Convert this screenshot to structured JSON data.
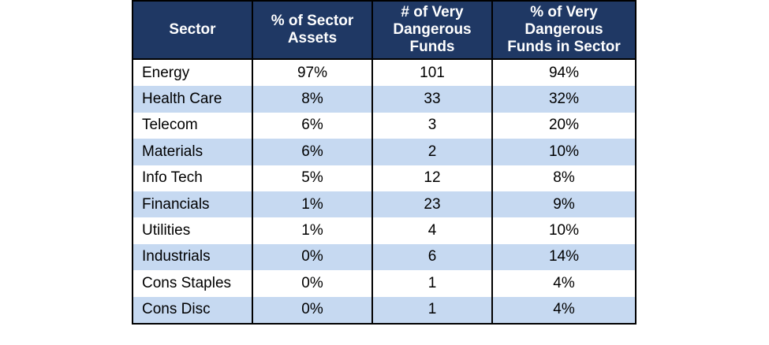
{
  "table": {
    "headers": [
      [
        "Sector"
      ],
      [
        "% of Sector",
        "Assets"
      ],
      [
        "# of Very",
        "Dangerous",
        "Funds"
      ],
      [
        "% of Very",
        "Dangerous",
        "Funds in Sector"
      ]
    ],
    "rows": [
      [
        "Energy",
        "97%",
        "101",
        "94%"
      ],
      [
        "Health Care",
        "8%",
        "33",
        "32%"
      ],
      [
        "Telecom",
        "6%",
        "3",
        "20%"
      ],
      [
        "Materials",
        "6%",
        "2",
        "10%"
      ],
      [
        "Info Tech",
        "5%",
        "12",
        "8%"
      ],
      [
        "Financials",
        "1%",
        "23",
        "9%"
      ],
      [
        "Utilities",
        "1%",
        "4",
        "10%"
      ],
      [
        "Industrials",
        "0%",
        "6",
        "14%"
      ],
      [
        "Cons Staples",
        "0%",
        "1",
        "4%"
      ],
      [
        "Cons Disc",
        "0%",
        "1",
        "4%"
      ]
    ]
  },
  "colors": {
    "header_bg": "#1f3864",
    "header_text": "#ffffff",
    "stripe_bg": "#c6d9f1",
    "row_bg": "#ffffff"
  }
}
